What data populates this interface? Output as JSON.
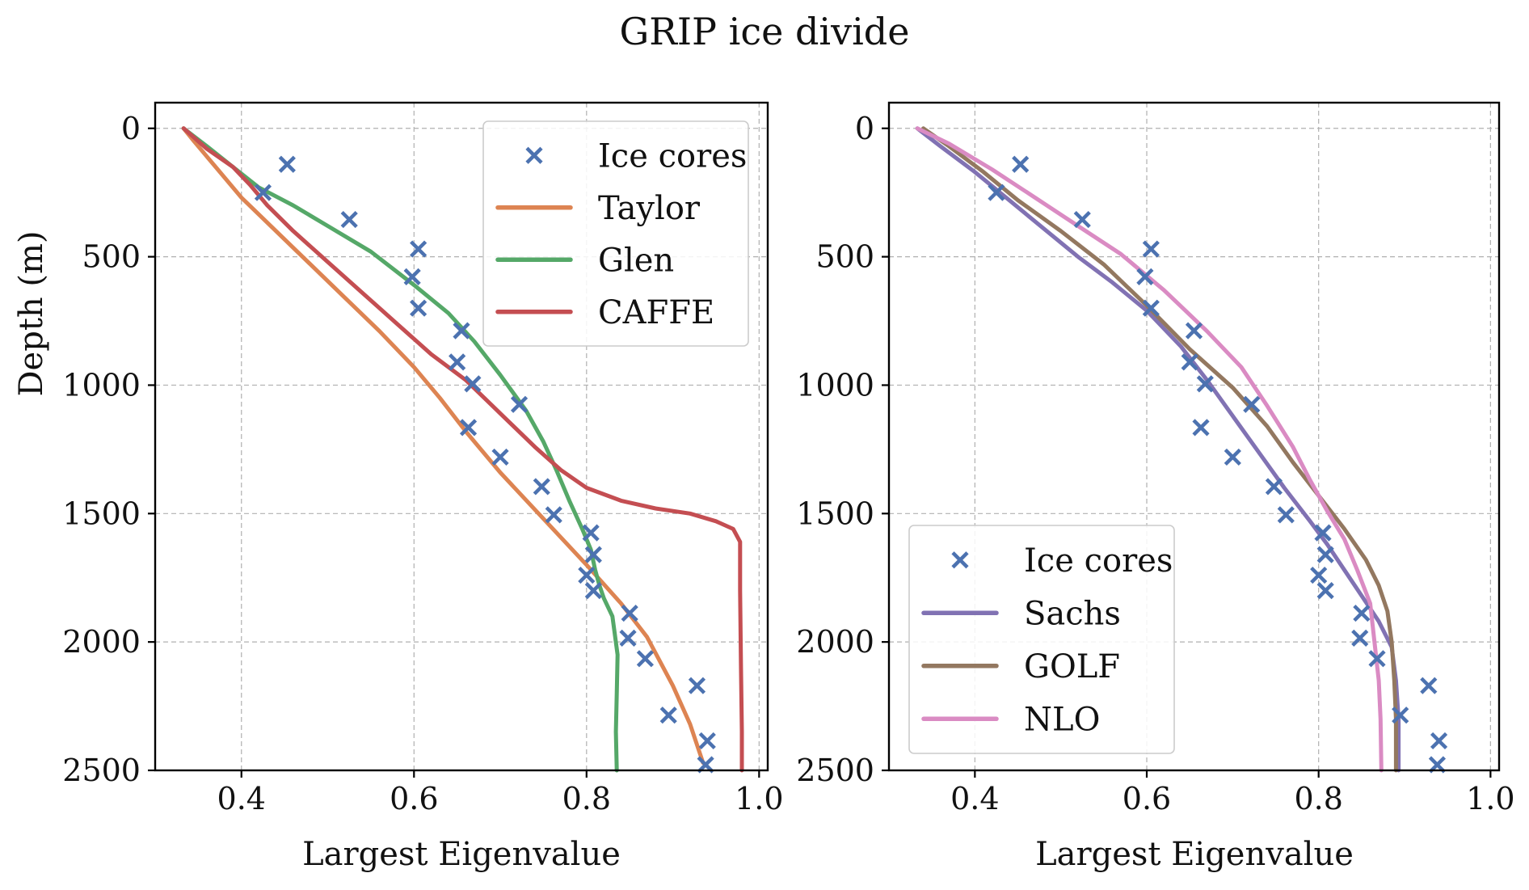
{
  "figure": {
    "title": "GRIP ice divide"
  },
  "colors": {
    "ice_cores": "#4c72b0",
    "taylor": "#dd8452",
    "glen": "#55a868",
    "caffe": "#c44e52",
    "sachs": "#8172b3",
    "golf": "#937860",
    "nlo": "#da8bc3"
  },
  "chart_data": [
    {
      "type": "line",
      "panel": "left",
      "xlabel": "Largest Eigenvalue",
      "ylabel": "Depth (m)",
      "xlim": [
        0.3,
        1.01
      ],
      "ylim": [
        2500,
        -100
      ],
      "y_inverted": true,
      "xticks": [
        "0.4",
        "0.6",
        "0.8",
        "1.0"
      ],
      "yticks": [
        "0",
        "500",
        "1000",
        "1500",
        "2000",
        "2500"
      ],
      "grid": true,
      "legend_position": "top-right",
      "scatter": {
        "name": "Ice cores",
        "marker": "x",
        "points": [
          [
            0.453,
            140
          ],
          [
            0.425,
            250
          ],
          [
            0.525,
            355
          ],
          [
            0.605,
            470
          ],
          [
            0.598,
            578
          ],
          [
            0.605,
            700
          ],
          [
            0.655,
            788
          ],
          [
            0.65,
            910
          ],
          [
            0.668,
            995
          ],
          [
            0.722,
            1075
          ],
          [
            0.663,
            1165
          ],
          [
            0.7,
            1280
          ],
          [
            0.748,
            1395
          ],
          [
            0.762,
            1505
          ],
          [
            0.805,
            1575
          ],
          [
            0.808,
            1660
          ],
          [
            0.8,
            1740
          ],
          [
            0.808,
            1800
          ],
          [
            0.85,
            1888
          ],
          [
            0.848,
            1985
          ],
          [
            0.868,
            2065
          ],
          [
            0.928,
            2170
          ],
          [
            0.895,
            2285
          ],
          [
            0.94,
            2385
          ],
          [
            0.938,
            2478
          ]
        ]
      },
      "series": [
        {
          "name": "Taylor",
          "color_key": "taylor",
          "x": [
            0.333,
            0.345,
            0.37,
            0.4,
            0.44,
            0.48,
            0.52,
            0.56,
            0.6,
            0.63,
            0.66,
            0.7,
            0.75,
            0.8,
            0.84,
            0.87,
            0.9,
            0.92,
            0.935
          ],
          "y": [
            0,
            50,
            150,
            270,
            400,
            530,
            660,
            790,
            930,
            1050,
            1180,
            1340,
            1520,
            1700,
            1850,
            1980,
            2170,
            2320,
            2470
          ]
        },
        {
          "name": "Glen",
          "color_key": "glen",
          "x": [
            0.333,
            0.36,
            0.39,
            0.42,
            0.46,
            0.5,
            0.55,
            0.6,
            0.64,
            0.67,
            0.7,
            0.73,
            0.75,
            0.765,
            0.78,
            0.795,
            0.805,
            0.81,
            0.815,
            0.82,
            0.83,
            0.836,
            0.835,
            0.834,
            0.835
          ],
          "y": [
            0,
            70,
            150,
            230,
            300,
            380,
            480,
            610,
            720,
            830,
            960,
            1100,
            1220,
            1330,
            1450,
            1560,
            1640,
            1720,
            1780,
            1830,
            1900,
            2050,
            2200,
            2350,
            2500
          ]
        },
        {
          "name": "CAFFE",
          "color_key": "caffe",
          "x": [
            0.333,
            0.36,
            0.39,
            0.41,
            0.43,
            0.46,
            0.5,
            0.54,
            0.58,
            0.62,
            0.66,
            0.7,
            0.74,
            0.77,
            0.8,
            0.84,
            0.88,
            0.92,
            0.95,
            0.97,
            0.978,
            0.978,
            0.979,
            0.98,
            0.98
          ],
          "y": [
            0,
            80,
            150,
            220,
            300,
            400,
            520,
            640,
            760,
            880,
            980,
            1110,
            1240,
            1330,
            1400,
            1450,
            1480,
            1500,
            1530,
            1560,
            1610,
            1800,
            2100,
            2350,
            2500
          ]
        }
      ]
    },
    {
      "type": "line",
      "panel": "right",
      "xlabel": "Largest Eigenvalue",
      "ylabel": "",
      "xlim": [
        0.3,
        1.01
      ],
      "ylim": [
        2500,
        -100
      ],
      "y_inverted": true,
      "xticks": [
        "0.4",
        "0.6",
        "0.8",
        "1.0"
      ],
      "yticks": [
        "0",
        "500",
        "1000",
        "1500",
        "2000",
        "2500"
      ],
      "grid": true,
      "legend_position": "lower-left",
      "scatter": {
        "name": "Ice cores",
        "marker": "x",
        "points": [
          [
            0.453,
            140
          ],
          [
            0.425,
            250
          ],
          [
            0.525,
            355
          ],
          [
            0.605,
            470
          ],
          [
            0.598,
            578
          ],
          [
            0.605,
            700
          ],
          [
            0.655,
            788
          ],
          [
            0.65,
            910
          ],
          [
            0.668,
            995
          ],
          [
            0.722,
            1075
          ],
          [
            0.663,
            1165
          ],
          [
            0.7,
            1280
          ],
          [
            0.748,
            1395
          ],
          [
            0.762,
            1505
          ],
          [
            0.805,
            1575
          ],
          [
            0.808,
            1660
          ],
          [
            0.8,
            1740
          ],
          [
            0.808,
            1800
          ],
          [
            0.85,
            1888
          ],
          [
            0.848,
            1985
          ],
          [
            0.868,
            2065
          ],
          [
            0.928,
            2170
          ],
          [
            0.895,
            2285
          ],
          [
            0.94,
            2385
          ],
          [
            0.938,
            2478
          ]
        ]
      },
      "series": [
        {
          "name": "Sachs",
          "color_key": "sachs",
          "x": [
            0.333,
            0.36,
            0.4,
            0.44,
            0.48,
            0.52,
            0.56,
            0.6,
            0.64,
            0.67,
            0.7,
            0.73,
            0.76,
            0.79,
            0.81,
            0.83,
            0.85,
            0.87,
            0.885,
            0.89,
            0.893,
            0.893
          ],
          "y": [
            0,
            70,
            170,
            280,
            390,
            500,
            600,
            710,
            850,
            980,
            1120,
            1260,
            1400,
            1530,
            1620,
            1720,
            1820,
            1920,
            2020,
            2150,
            2300,
            2500
          ]
        },
        {
          "name": "GOLF",
          "color_key": "golf",
          "x": [
            0.34,
            0.37,
            0.41,
            0.45,
            0.5,
            0.55,
            0.6,
            0.65,
            0.7,
            0.74,
            0.77,
            0.8,
            0.83,
            0.855,
            0.87,
            0.88,
            0.885,
            0.888,
            0.89,
            0.89
          ],
          "y": [
            0,
            70,
            170,
            280,
            400,
            530,
            690,
            860,
            1010,
            1160,
            1300,
            1430,
            1560,
            1680,
            1780,
            1880,
            2000,
            2150,
            2300,
            2500
          ]
        },
        {
          "name": "NLO",
          "color_key": "nlo",
          "x": [
            0.333,
            0.37,
            0.42,
            0.47,
            0.52,
            0.57,
            0.62,
            0.67,
            0.71,
            0.74,
            0.77,
            0.79,
            0.81,
            0.83,
            0.845,
            0.86,
            0.865,
            0.87,
            0.872,
            0.873
          ],
          "y": [
            0,
            60,
            160,
            270,
            380,
            490,
            630,
            790,
            930,
            1080,
            1240,
            1370,
            1490,
            1600,
            1720,
            1850,
            2000,
            2150,
            2300,
            2500
          ]
        }
      ]
    }
  ]
}
